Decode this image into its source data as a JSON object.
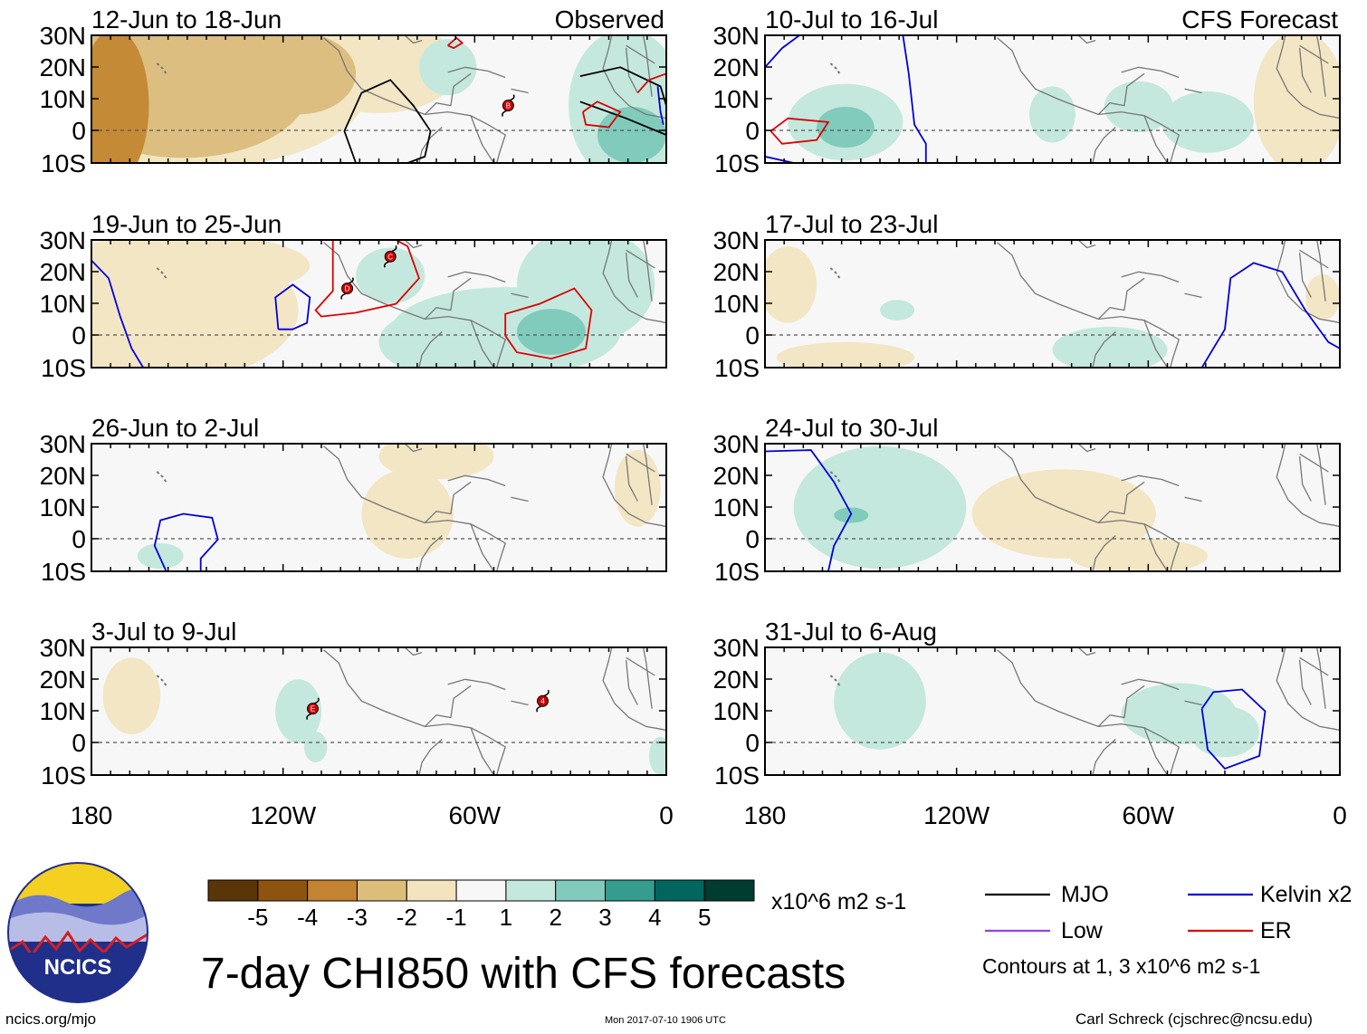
{
  "title": "7-day CHI850 with CFS forecasts",
  "logo_text": "NCICS",
  "website": "ncics.org/mjo",
  "timestamp": "Mon 2017-07-10 1906 UTC",
  "credit": "Carl Schreck (cjschrec@ncsu.edu)",
  "column_labels": {
    "observed": "Observed",
    "forecast": "CFS Forecast"
  },
  "latitude_labels": [
    "30N",
    "20N",
    "10N",
    "0",
    "10S"
  ],
  "longitude_labels": [
    "180",
    "120W",
    "60W",
    "0"
  ],
  "panels": [
    {
      "label": "12-Jun to 18-Jun",
      "type": "observed",
      "storms": [
        "B"
      ]
    },
    {
      "label": "19-Jun to 25-Jun",
      "type": "observed",
      "storms": [
        "C",
        "D"
      ]
    },
    {
      "label": "26-Jun to 2-Jul",
      "type": "observed",
      "storms": []
    },
    {
      "label": "3-Jul to 9-Jul",
      "type": "observed",
      "storms": [
        "E",
        "4"
      ]
    },
    {
      "label": "10-Jul to 16-Jul",
      "type": "forecast",
      "storms": []
    },
    {
      "label": "17-Jul to 23-Jul",
      "type": "forecast",
      "storms": []
    },
    {
      "label": "24-Jul to 30-Jul",
      "type": "forecast",
      "storms": []
    },
    {
      "label": "31-Jul to 6-Aug",
      "type": "forecast",
      "storms": []
    }
  ],
  "colorbar": {
    "units": "x10^6 m2 s-1",
    "ticks": [
      "-5",
      "-4",
      "-3",
      "-2",
      "-1",
      "1",
      "2",
      "3",
      "4",
      "5"
    ],
    "colors": [
      "#5a3508",
      "#8e530f",
      "#c38331",
      "#dcbd79",
      "#f3e4bf",
      "#f7f7f7",
      "#c4e8de",
      "#80cbbc",
      "#349d90",
      "#01665e",
      "#003c30"
    ]
  },
  "legend": {
    "items": [
      {
        "label": "MJO",
        "color": "#000000"
      },
      {
        "label": "Kelvin x2",
        "color": "#0000dd"
      },
      {
        "label": "Low",
        "color": "#9b40d8"
      },
      {
        "label": "ER",
        "color": "#e00000"
      }
    ],
    "note": "Contours at 1, 3 x10^6 m2 s-1"
  },
  "palette": {
    "brown_dark": "#c58a35",
    "brown_mid": "#dcbe80",
    "tan": "#f3e6c4",
    "teal_light": "#c4e8de",
    "teal_mid": "#80cbbc",
    "background": "#f7f7f7"
  }
}
